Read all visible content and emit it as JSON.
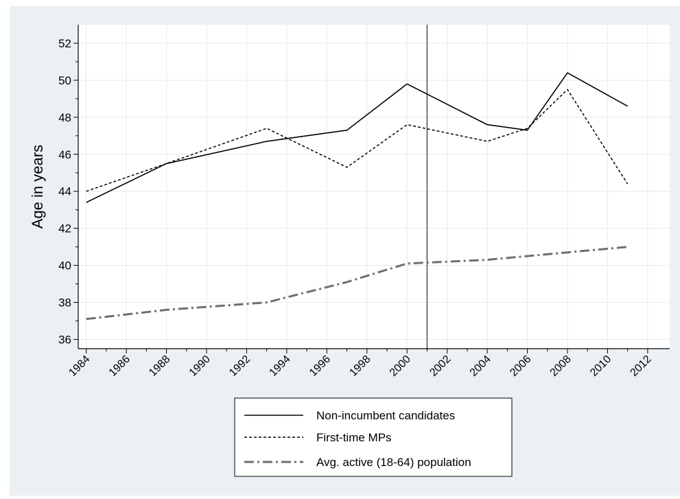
{
  "chart_data": {
    "type": "line",
    "ylabel": "Age in years",
    "xlim": [
      1984,
      2012
    ],
    "ylim": [
      36,
      52
    ],
    "x_ticks": [
      "1984",
      "1986",
      "1988",
      "1990",
      "1992",
      "1994",
      "1996",
      "1998",
      "2000",
      "2002",
      "2004",
      "2006",
      "2008",
      "2010",
      "2012"
    ],
    "y_ticks": [
      "36",
      "38",
      "40",
      "42",
      "44",
      "46",
      "48",
      "50",
      "52"
    ],
    "grid": true,
    "reference_line_x": 2001,
    "legend_position": "bottom",
    "series": [
      {
        "name": "Non-incumbent candidates",
        "style": "solid",
        "color": "#000000",
        "x": [
          1984,
          1988,
          1993,
          1997,
          2000,
          2004,
          2006,
          2008,
          2011
        ],
        "y": [
          43.4,
          45.5,
          46.7,
          47.3,
          49.8,
          47.6,
          47.3,
          50.4,
          48.6
        ]
      },
      {
        "name": "First-time MPs",
        "style": "dashed",
        "color": "#000000",
        "x": [
          1984,
          1988,
          1993,
          1997,
          2000,
          2004,
          2006,
          2008,
          2011
        ],
        "y": [
          44.0,
          45.5,
          47.4,
          45.3,
          47.6,
          46.7,
          47.4,
          49.5,
          44.4
        ]
      },
      {
        "name": "Avg. active (18-64) population",
        "style": "dashdot",
        "color": "#6e6e6e",
        "x": [
          1984,
          1988,
          1993,
          1997,
          2000,
          2004,
          2006,
          2008,
          2011
        ],
        "y": [
          37.1,
          37.6,
          38.0,
          39.1,
          40.1,
          40.3,
          40.5,
          40.7,
          41.0
        ]
      }
    ]
  },
  "colors": {
    "outer_background": "#eaf0f3",
    "plot_background": "#ffffff",
    "grid": "#e6edf0",
    "reference_line": "#555555"
  }
}
